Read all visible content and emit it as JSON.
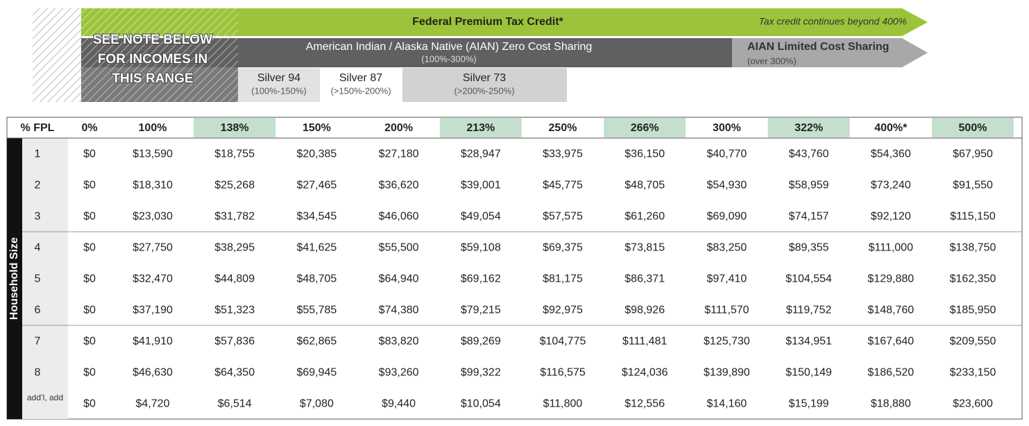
{
  "bands": {
    "note": [
      "SEE NOTE BELOW",
      "FOR INCOMES IN",
      "THIS RANGE"
    ],
    "federal": {
      "label": "Federal Premium Tax Credit*",
      "note": "Tax credit continues beyond 400%"
    },
    "aian_zero": {
      "label": "American Indian / Alaska Native (AIAN) Zero Cost Sharing",
      "range": "(100%-300%)"
    },
    "aian_limited": {
      "label": "AIAN Limited Cost Sharing",
      "range": "(over 300%)"
    },
    "silver": [
      {
        "label": "Silver 94",
        "range": "(100%-150%)"
      },
      {
        "label": "Silver 87",
        "range": "(>150%-200%)"
      },
      {
        "label": "Silver 73",
        "range": "(>200%-250%)"
      }
    ]
  },
  "table": {
    "side_label": "Household Size",
    "header": [
      "% FPL",
      "0%",
      "100%",
      "138%",
      "150%",
      "200%",
      "213%",
      "250%",
      "266%",
      "300%",
      "322%",
      "400%*",
      "500%"
    ],
    "rows": [
      [
        "1",
        "$0",
        "$13,590",
        "$18,755",
        "$20,385",
        "$27,180",
        "$28,947",
        "$33,975",
        "$36,150",
        "$40,770",
        "$43,760",
        "$54,360",
        "$67,950"
      ],
      [
        "2",
        "$0",
        "$18,310",
        "$25,268",
        "$27,465",
        "$36,620",
        "$39,001",
        "$45,775",
        "$48,705",
        "$54,930",
        "$58,959",
        "$73,240",
        "$91,550"
      ],
      [
        "3",
        "$0",
        "$23,030",
        "$31,782",
        "$34,545",
        "$46,060",
        "$49,054",
        "$57,575",
        "$61,260",
        "$69,090",
        "$74,157",
        "$92,120",
        "$115,150"
      ],
      [
        "4",
        "$0",
        "$27,750",
        "$38,295",
        "$41,625",
        "$55,500",
        "$59,108",
        "$69,375",
        "$73,815",
        "$83,250",
        "$89,355",
        "$111,000",
        "$138,750"
      ],
      [
        "5",
        "$0",
        "$32,470",
        "$44,809",
        "$48,705",
        "$64,940",
        "$69,162",
        "$81,175",
        "$86,371",
        "$97,410",
        "$104,554",
        "$129,880",
        "$162,350"
      ],
      [
        "6",
        "$0",
        "$37,190",
        "$51,323",
        "$55,785",
        "$74,380",
        "$79,215",
        "$92,975",
        "$98,926",
        "$111,570",
        "$119,752",
        "$148,760",
        "$185,950"
      ],
      [
        "7",
        "$0",
        "$41,910",
        "$57,836",
        "$62,865",
        "$83,820",
        "$89,269",
        "$104,775",
        "$111,481",
        "$125,730",
        "$134,951",
        "$167,640",
        "$209,550"
      ],
      [
        "8",
        "$0",
        "$46,630",
        "$64,350",
        "$69,945",
        "$93,260",
        "$99,322",
        "$116,575",
        "$124,036",
        "$139,890",
        "$150,149",
        "$186,520",
        "$233,150"
      ],
      [
        "add’l, add",
        "$0",
        "$4,720",
        "$6,514",
        "$7,080",
        "$9,440",
        "$10,054",
        "$11,800",
        "$12,556",
        "$14,160",
        "$15,199",
        "$18,880",
        "$23,600"
      ]
    ]
  }
}
